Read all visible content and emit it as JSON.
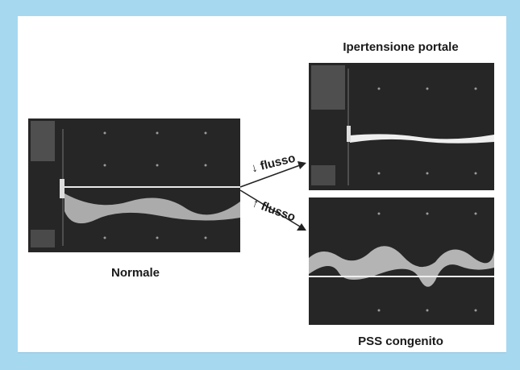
{
  "labels": {
    "top": "Ipertensione portale",
    "left": "Normale",
    "bottom": "PSS congenito"
  },
  "arrows": {
    "decrease": "↓ flusso",
    "increase": "↑ flusso"
  }
}
